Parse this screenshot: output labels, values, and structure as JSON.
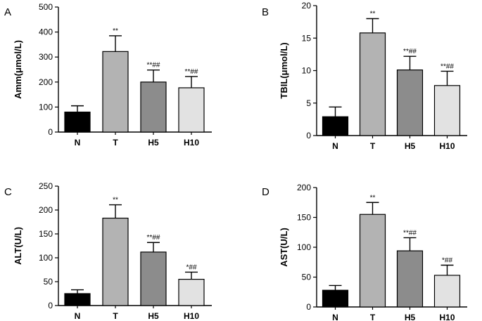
{
  "chart_data": [
    {
      "type": "bar",
      "panel": "A",
      "ylabel": "Amm(μmol/L)",
      "categories": [
        "N",
        "T",
        "H5",
        "H10"
      ],
      "values": [
        80,
        322,
        200,
        177
      ],
      "errors": [
        25,
        63,
        48,
        45
      ],
      "annotations": [
        "",
        "**",
        "**##",
        "**##"
      ],
      "ylim": [
        0,
        500
      ],
      "yticks": [
        0,
        100,
        200,
        300,
        400,
        500
      ],
      "colors": [
        "#000000",
        "#b3b3b3",
        "#8c8c8c",
        "#e2e2e2"
      ]
    },
    {
      "type": "bar",
      "panel": "B",
      "ylabel": "TBIL(μmol/L)",
      "categories": [
        "N",
        "T",
        "H5",
        "H10"
      ],
      "values": [
        2.9,
        15.8,
        10.1,
        7.7
      ],
      "errors": [
        1.5,
        2.2,
        2.1,
        2.2
      ],
      "annotations": [
        "",
        "**",
        "**##",
        "**##"
      ],
      "ylim": [
        0,
        20
      ],
      "yticks": [
        0,
        5,
        10,
        15,
        20
      ],
      "colors": [
        "#000000",
        "#b3b3b3",
        "#8c8c8c",
        "#e2e2e2"
      ]
    },
    {
      "type": "bar",
      "panel": "C",
      "ylabel": "ALT(U/L)",
      "categories": [
        "N",
        "T",
        "H5",
        "H10"
      ],
      "values": [
        25,
        183,
        112,
        55
      ],
      "errors": [
        8,
        28,
        20,
        15
      ],
      "annotations": [
        "",
        "**",
        "**##",
        "*##"
      ],
      "ylim": [
        0,
        250
      ],
      "yticks": [
        0,
        50,
        100,
        150,
        200,
        250
      ],
      "colors": [
        "#000000",
        "#b3b3b3",
        "#8c8c8c",
        "#e2e2e2"
      ]
    },
    {
      "type": "bar",
      "panel": "D",
      "ylabel": "AST(U/L)",
      "categories": [
        "N",
        "T",
        "H5",
        "H10"
      ],
      "values": [
        28,
        155,
        94,
        53
      ],
      "errors": [
        8,
        20,
        22,
        17
      ],
      "annotations": [
        "",
        "**",
        "**##",
        "*##"
      ],
      "ylim": [
        0,
        200
      ],
      "yticks": [
        0,
        50,
        100,
        150,
        200
      ],
      "colors": [
        "#000000",
        "#b3b3b3",
        "#8c8c8c",
        "#e2e2e2"
      ]
    }
  ]
}
